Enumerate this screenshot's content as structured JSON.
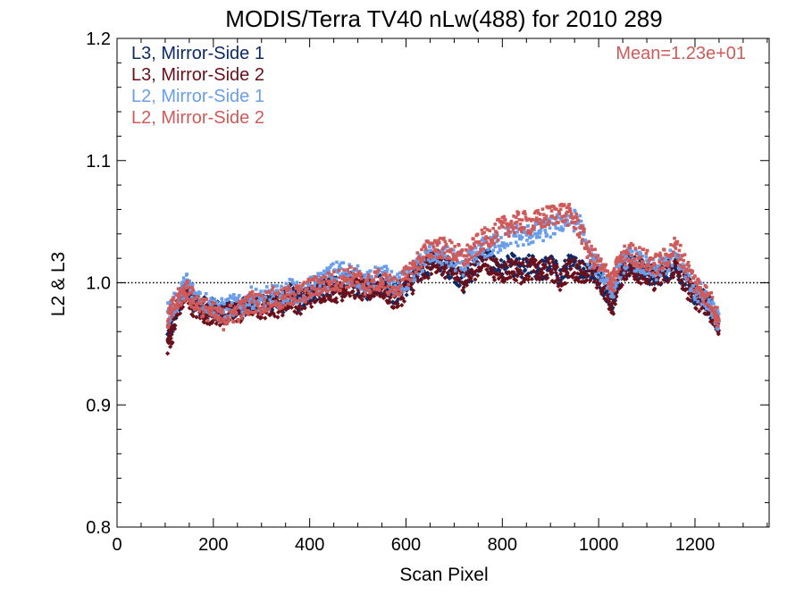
{
  "chart_data": {
    "type": "scatter",
    "title": "MODIS/Terra TV40 nLw(488) for 2010 289",
    "xlabel": "Scan Pixel",
    "ylabel": "L2 & L3",
    "xlim": [
      0,
      1354
    ],
    "ylim": [
      0.8,
      1.2
    ],
    "x_ticks": [
      0,
      200,
      400,
      600,
      800,
      1000,
      1200
    ],
    "x_tick_labels": [
      "0",
      "200",
      "400",
      "600",
      "800",
      "1000",
      "1200"
    ],
    "y_ticks": [
      0.8,
      0.9,
      1.0,
      1.1,
      1.2
    ],
    "y_tick_labels": [
      "0.8",
      "0.9",
      "1.0",
      "1.1",
      "1.2"
    ],
    "reference_line": {
      "y": 1.0,
      "style": "dotted"
    },
    "annotation": {
      "text": "Mean=1.23e+01",
      "position": "top-right",
      "color": "#d05a5a"
    },
    "legend_position": "top-left",
    "series": [
      {
        "name": "L3, Mirror-Side 1",
        "color": "#0d2a66",
        "marker": "diamond",
        "x": [
          105,
          115,
          130,
          145,
          160,
          180,
          200,
          220,
          240,
          260,
          280,
          300,
          320,
          340,
          360,
          380,
          400,
          420,
          440,
          460,
          480,
          500,
          520,
          540,
          560,
          580,
          600,
          620,
          640,
          660,
          680,
          700,
          720,
          740,
          760,
          780,
          800,
          820,
          840,
          860,
          880,
          900,
          920,
          940,
          960,
          980,
          1000,
          1020,
          1030,
          1040,
          1060,
          1080,
          1100,
          1120,
          1140,
          1160,
          1180,
          1200,
          1220,
          1240,
          1250
        ],
        "y": [
          0.955,
          0.965,
          0.985,
          0.995,
          0.985,
          0.98,
          0.978,
          0.975,
          0.98,
          0.978,
          0.985,
          0.98,
          0.985,
          0.982,
          0.99,
          0.985,
          0.99,
          0.995,
          0.998,
          0.995,
          1.0,
          0.998,
          0.995,
          1.0,
          0.995,
          0.99,
          0.998,
          1.005,
          1.012,
          1.02,
          1.015,
          1.01,
          1.0,
          1.012,
          1.02,
          1.015,
          1.01,
          1.015,
          1.01,
          1.015,
          1.01,
          1.015,
          1.005,
          1.015,
          1.012,
          1.01,
          1.005,
          0.99,
          0.985,
          1.005,
          1.015,
          1.012,
          1.008,
          1.005,
          1.01,
          1.015,
          1.0,
          0.99,
          0.985,
          0.975,
          0.965
        ]
      },
      {
        "name": "L3, Mirror-Side 2",
        "color": "#6b0f1a",
        "marker": "diamond",
        "x": [
          105,
          115,
          130,
          145,
          160,
          180,
          200,
          220,
          240,
          260,
          280,
          300,
          320,
          340,
          360,
          380,
          400,
          420,
          440,
          460,
          480,
          500,
          520,
          540,
          560,
          580,
          600,
          620,
          640,
          660,
          680,
          700,
          720,
          740,
          760,
          780,
          800,
          820,
          840,
          860,
          880,
          900,
          920,
          940,
          960,
          980,
          1000,
          1020,
          1030,
          1040,
          1060,
          1080,
          1100,
          1120,
          1140,
          1160,
          1180,
          1200,
          1220,
          1240,
          1250
        ],
        "y": [
          0.95,
          0.96,
          0.982,
          0.99,
          0.98,
          0.975,
          0.975,
          0.972,
          0.978,
          0.975,
          0.982,
          0.978,
          0.982,
          0.98,
          0.988,
          0.982,
          0.988,
          0.992,
          0.995,
          0.992,
          0.998,
          0.995,
          0.992,
          0.998,
          0.992,
          0.985,
          0.995,
          1.002,
          1.01,
          1.018,
          1.012,
          1.008,
          1.002,
          1.01,
          1.018,
          1.012,
          1.008,
          1.012,
          1.008,
          1.012,
          1.008,
          1.012,
          1.002,
          1.012,
          1.01,
          1.008,
          1.002,
          0.988,
          0.982,
          1.002,
          1.012,
          1.01,
          1.005,
          1.002,
          1.008,
          1.012,
          0.998,
          0.988,
          0.982,
          0.972,
          0.962
        ]
      },
      {
        "name": "L2, Mirror-Side 1",
        "color": "#6a9eea",
        "marker": "square",
        "x": [
          105,
          115,
          130,
          145,
          160,
          180,
          200,
          220,
          240,
          260,
          280,
          300,
          320,
          340,
          360,
          380,
          400,
          420,
          440,
          460,
          480,
          500,
          520,
          540,
          560,
          580,
          600,
          620,
          640,
          660,
          680,
          700,
          720,
          740,
          760,
          780,
          800,
          820,
          840,
          860,
          880,
          900,
          920,
          940,
          960,
          980,
          1000,
          1020,
          1030,
          1040,
          1060,
          1080,
          1100,
          1120,
          1140,
          1160,
          1180,
          1200,
          1220,
          1240,
          1250
        ],
        "y": [
          0.975,
          0.98,
          0.99,
          1.0,
          0.99,
          0.985,
          0.98,
          0.978,
          0.982,
          0.98,
          0.988,
          0.985,
          0.99,
          0.988,
          0.995,
          0.99,
          0.995,
          1.0,
          1.005,
          1.01,
          1.008,
          1.005,
          1.0,
          1.005,
          1.005,
          0.998,
          1.002,
          1.01,
          1.02,
          1.025,
          1.022,
          1.018,
          1.015,
          1.02,
          1.028,
          1.03,
          1.035,
          1.04,
          1.038,
          1.04,
          1.042,
          1.045,
          1.05,
          1.052,
          1.05,
          1.02,
          1.012,
          1.0,
          0.995,
          1.01,
          1.02,
          1.018,
          1.012,
          1.01,
          1.015,
          1.022,
          1.01,
          0.995,
          0.99,
          0.978,
          0.965
        ]
      },
      {
        "name": "L2, Mirror-Side 2",
        "color": "#d05a5a",
        "marker": "square",
        "x": [
          105,
          115,
          130,
          145,
          160,
          180,
          200,
          220,
          240,
          260,
          280,
          300,
          320,
          340,
          360,
          380,
          400,
          420,
          440,
          460,
          480,
          500,
          520,
          540,
          560,
          580,
          600,
          620,
          640,
          660,
          680,
          700,
          720,
          740,
          760,
          780,
          800,
          820,
          840,
          860,
          880,
          900,
          920,
          940,
          960,
          980,
          1000,
          1020,
          1030,
          1040,
          1060,
          1080,
          1100,
          1120,
          1140,
          1160,
          1180,
          1200,
          1220,
          1240,
          1250
        ],
        "y": [
          0.97,
          0.978,
          0.988,
          0.995,
          0.985,
          0.98,
          0.975,
          0.97,
          0.975,
          0.978,
          0.985,
          0.982,
          0.988,
          0.985,
          0.99,
          0.99,
          0.995,
          0.998,
          1.0,
          1.002,
          1.005,
          1.002,
          0.998,
          1.002,
          1.0,
          0.995,
          1.005,
          1.015,
          1.025,
          1.03,
          1.028,
          1.025,
          1.02,
          1.028,
          1.035,
          1.04,
          1.045,
          1.048,
          1.05,
          1.048,
          1.052,
          1.055,
          1.058,
          1.055,
          1.045,
          1.025,
          1.015,
          1.005,
          1.0,
          1.015,
          1.025,
          1.022,
          1.018,
          1.015,
          1.02,
          1.03,
          1.015,
          1.0,
          0.992,
          0.98,
          0.968
        ]
      }
    ]
  }
}
